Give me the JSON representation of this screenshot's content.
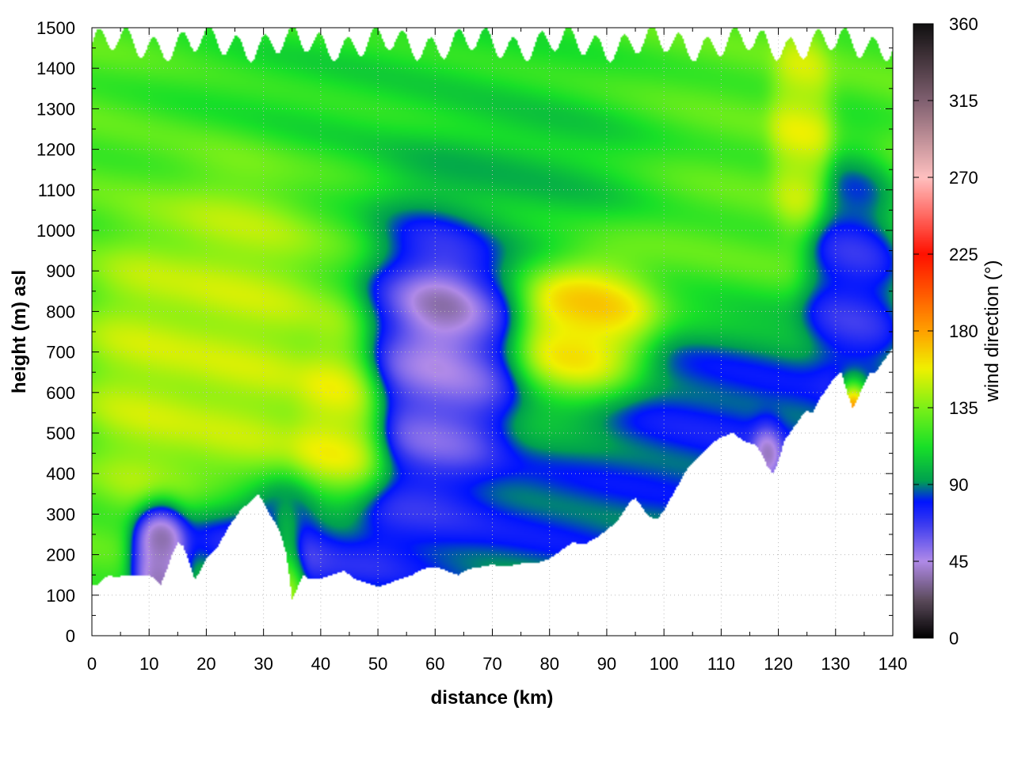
{
  "chart_data": {
    "type": "heatmap",
    "title": "",
    "xlabel": "distance (km)",
    "ylabel": "height (m) asl",
    "colorbar_label": "wind direction (°)",
    "xlim": [
      0,
      140
    ],
    "ylim": [
      0,
      1500
    ],
    "clim": [
      0,
      360
    ],
    "xticks": [
      0,
      10,
      20,
      30,
      40,
      50,
      60,
      70,
      80,
      90,
      100,
      110,
      120,
      130,
      140
    ],
    "yticks": [
      0,
      100,
      200,
      300,
      400,
      500,
      600,
      700,
      800,
      900,
      1000,
      1100,
      1200,
      1300,
      1400,
      1500
    ],
    "cticks": [
      0,
      45,
      90,
      135,
      180,
      225,
      270,
      315,
      360
    ],
    "grid": true,
    "colormap": [
      [
        0,
        "#000000"
      ],
      [
        22,
        "#5a4a5a"
      ],
      [
        45,
        "#b08ae8"
      ],
      [
        67,
        "#3a3af0"
      ],
      [
        80,
        "#0014ff"
      ],
      [
        92,
        "#00a050"
      ],
      [
        112,
        "#18e028"
      ],
      [
        135,
        "#7cf018"
      ],
      [
        158,
        "#f0f000"
      ],
      [
        180,
        "#ffa000"
      ],
      [
        225,
        "#ff1000"
      ],
      [
        270,
        "#ffc0c0"
      ],
      [
        315,
        "#806070"
      ],
      [
        360,
        "#101010"
      ]
    ],
    "terrain": {
      "x": [
        0,
        1,
        2,
        3,
        4,
        6,
        8,
        10,
        11,
        12,
        13,
        14,
        15,
        16,
        17,
        18,
        19,
        20,
        22,
        24,
        26,
        28,
        29,
        30,
        31,
        32,
        33,
        34,
        35,
        36,
        37,
        38,
        40,
        42,
        44,
        46,
        48,
        50,
        52,
        54,
        56,
        58,
        60,
        62,
        64,
        66,
        68,
        70,
        72,
        74,
        76,
        78,
        80,
        82,
        84,
        86,
        88,
        90,
        92,
        94,
        95,
        96,
        97,
        98,
        99,
        100,
        102,
        104,
        106,
        108,
        110,
        112,
        114,
        116,
        117,
        118,
        119,
        120,
        121,
        122,
        123,
        124,
        125,
        126,
        127,
        128,
        129,
        130,
        131,
        132,
        133,
        134,
        135,
        136,
        137,
        138,
        139,
        140
      ],
      "height": [
        125,
        125,
        140,
        150,
        145,
        148,
        150,
        148,
        140,
        125,
        160,
        200,
        230,
        220,
        180,
        140,
        160,
        190,
        220,
        270,
        310,
        335,
        350,
        330,
        300,
        280,
        250,
        200,
        90,
        120,
        150,
        140,
        140,
        150,
        160,
        140,
        130,
        120,
        130,
        140,
        150,
        165,
        170,
        160,
        150,
        165,
        170,
        175,
        170,
        175,
        180,
        180,
        190,
        210,
        230,
        225,
        240,
        260,
        285,
        330,
        340,
        320,
        300,
        290,
        290,
        310,
        360,
        410,
        440,
        470,
        490,
        500,
        480,
        470,
        450,
        420,
        400,
        430,
        480,
        500,
        520,
        540,
        555,
        550,
        580,
        600,
        620,
        640,
        650,
        600,
        560,
        590,
        620,
        650,
        650,
        670,
        690,
        710
      ]
    },
    "regions": [
      {
        "x_center": 12,
        "y_center": 200,
        "x_half": 3,
        "y_half": 80,
        "direction": 20
      },
      {
        "x_center": 38,
        "y_center": 240,
        "x_half": 14,
        "y_half": 90,
        "direction": 55
      },
      {
        "x_center": 61,
        "y_center": 660,
        "x_half": 8,
        "y_half": 260,
        "direction": 45
      },
      {
        "x_center": 61,
        "y_center": 780,
        "x_half": 4,
        "y_half": 80,
        "direction": 25
      },
      {
        "x_center": 78,
        "y_center": 270,
        "x_half": 20,
        "y_half": 120,
        "direction": 78
      },
      {
        "x_center": 110,
        "y_center": 520,
        "x_half": 20,
        "y_half": 150,
        "direction": 75
      },
      {
        "x_center": 133,
        "y_center": 820,
        "x_half": 5,
        "y_half": 200,
        "direction": 65
      },
      {
        "x_center": 87,
        "y_center": 730,
        "x_half": 7,
        "y_half": 110,
        "direction": 175
      },
      {
        "x_center": 43,
        "y_center": 480,
        "x_half": 5,
        "y_half": 170,
        "direction": 160
      },
      {
        "x_center": 34,
        "y_center": 170,
        "x_half": 2,
        "y_half": 90,
        "direction": 160
      },
      {
        "x_center": 72,
        "y_center": 1150,
        "x_half": 14,
        "y_half": 120,
        "direction": 100
      },
      {
        "x_center": 52,
        "y_center": 1360,
        "x_half": 22,
        "y_half": 120,
        "direction": 110
      },
      {
        "x_center": 25,
        "y_center": 720,
        "x_half": 8,
        "y_half": 250,
        "direction": 150
      },
      {
        "x_center": 124,
        "y_center": 1250,
        "x_half": 3,
        "y_half": 150,
        "direction": 155
      },
      {
        "x_center": 10,
        "y_center": 650,
        "x_half": 6,
        "y_half": 200,
        "direction": 150
      },
      {
        "x_center": 133,
        "y_center": 560,
        "x_half": 2,
        "y_half": 50,
        "direction": 260
      },
      {
        "x_center": 118,
        "y_center": 440,
        "x_half": 2,
        "y_half": 60,
        "direction": 10
      }
    ],
    "background_direction": 125
  }
}
